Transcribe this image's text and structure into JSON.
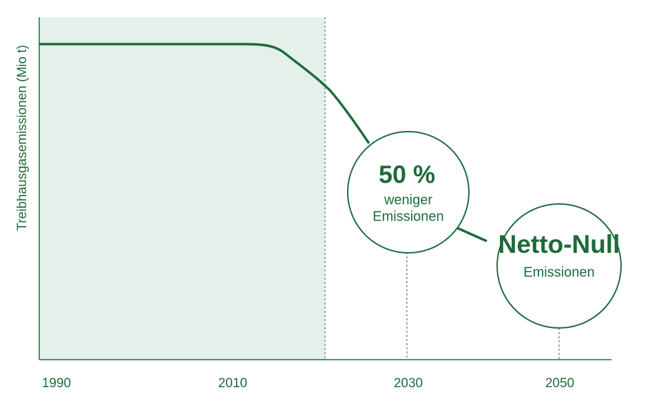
{
  "axis": {
    "y_label": "Treibhausgasemissionen (Mio t)",
    "x_labels": [
      "1990",
      "2010",
      "2030",
      "2050"
    ]
  },
  "milestones": [
    {
      "headline": "50 %",
      "lines": [
        "weniger",
        "Emissionen"
      ]
    },
    {
      "headline": "Netto-Null",
      "lines": [
        "Emissionen"
      ]
    }
  ]
}
